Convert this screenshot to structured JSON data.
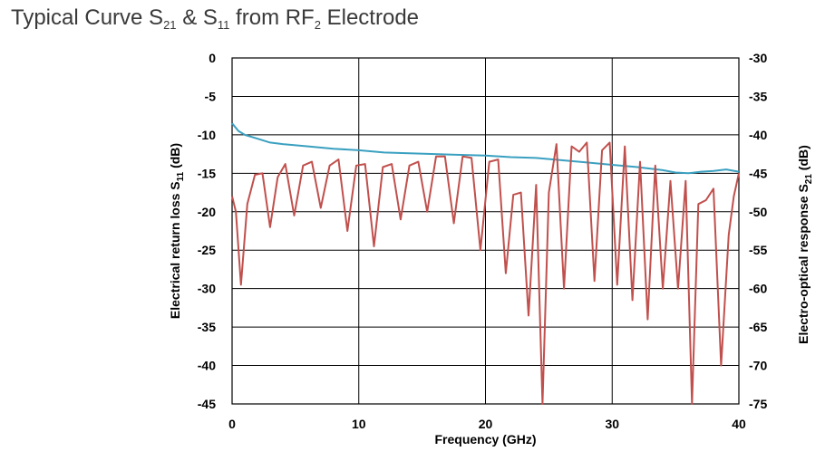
{
  "chart_data": {
    "type": "line",
    "title": {
      "prefix": "Typical Curve S",
      "sub1": "21",
      "mid": " & S",
      "sub2": "11",
      "mid2": " from RF",
      "sub3": "2",
      "suffix": " Electrode"
    },
    "xlabel": "Frequency (GHz)",
    "ylabel_left": {
      "text": "Electrical return loss S",
      "sub": "11",
      "unit": " (dB)"
    },
    "ylabel_right": {
      "text": "Electro-optical response S",
      "sub": "21",
      "unit": " (dB)"
    },
    "xlim": [
      0,
      40
    ],
    "ylim_left": [
      -45,
      0
    ],
    "ylim_right": [
      -75,
      -30
    ],
    "xticks": [
      "0",
      "10",
      "20",
      "30",
      "40"
    ],
    "yticks_left": [
      "0",
      "-5",
      "-10",
      "-15",
      "-20",
      "-25",
      "-30",
      "-35",
      "-40",
      "-45"
    ],
    "yticks_right": [
      "-30",
      "-35",
      "-40",
      "-45",
      "-50",
      "-55",
      "-60",
      "-65",
      "-70",
      "-75"
    ],
    "grid": true,
    "series": [
      {
        "key": "S21",
        "axis": "right",
        "color": "#3aa0c0",
        "x": [
          0,
          0.5,
          1,
          2,
          3,
          4,
          6,
          8,
          10,
          12,
          14,
          16,
          18,
          20,
          22,
          24,
          26,
          28,
          30,
          32,
          34,
          35,
          36,
          37,
          38,
          39,
          40
        ],
        "y": [
          -38.5,
          -39.5,
          -40,
          -40.5,
          -41,
          -41.2,
          -41.5,
          -41.8,
          -42,
          -42.3,
          -42.4,
          -42.5,
          -42.6,
          -42.7,
          -42.9,
          -43.0,
          -43.3,
          -43.6,
          -43.9,
          -44.2,
          -44.6,
          -44.9,
          -45.0,
          -44.8,
          -44.7,
          -44.5,
          -44.8
        ]
      },
      {
        "key": "S11",
        "axis": "left",
        "color": "#c0504d",
        "x": [
          0,
          0.3,
          0.7,
          1.2,
          1.8,
          2.4,
          3.0,
          3.6,
          4.2,
          4.9,
          5.6,
          6.3,
          7.0,
          7.7,
          8.4,
          9.1,
          9.8,
          10.5,
          11.2,
          11.9,
          12.6,
          13.3,
          14.0,
          14.7,
          15.4,
          16.1,
          16.8,
          17.5,
          18.2,
          18.9,
          19.6,
          20.3,
          21.0,
          21.6,
          22.2,
          22.8,
          23.4,
          24.0,
          24.5,
          25.0,
          25.6,
          26.2,
          26.8,
          27.4,
          28.0,
          28.6,
          29.2,
          29.8,
          30.4,
          31.0,
          31.6,
          32.2,
          32.8,
          33.4,
          34.0,
          34.6,
          35.2,
          35.8,
          36.3,
          36.8,
          37.4,
          38.0,
          38.6,
          39.2,
          39.6,
          40.0
        ],
        "y": [
          -18,
          -20,
          -29.5,
          -19,
          -15.2,
          -15,
          -22,
          -15.5,
          -13.8,
          -20.5,
          -14,
          -13.5,
          -19.5,
          -14,
          -13.2,
          -22.5,
          -14,
          -13.8,
          -24.5,
          -14.2,
          -13.8,
          -21,
          -14,
          -13.5,
          -20,
          -12.8,
          -12.8,
          -21.5,
          -12.8,
          -13,
          -25,
          -13.5,
          -13.2,
          -28,
          -17.8,
          -17.5,
          -33.5,
          -16.5,
          -45,
          -17.5,
          -11.2,
          -30,
          -11.5,
          -12.2,
          -11,
          -29,
          -12,
          -11,
          -29.5,
          -11.5,
          -31.5,
          -13.5,
          -34,
          -14,
          -30,
          -16,
          -30,
          -16,
          -45,
          -19,
          -18.5,
          -17,
          -40,
          -23,
          -18,
          -15
        ]
      }
    ]
  }
}
